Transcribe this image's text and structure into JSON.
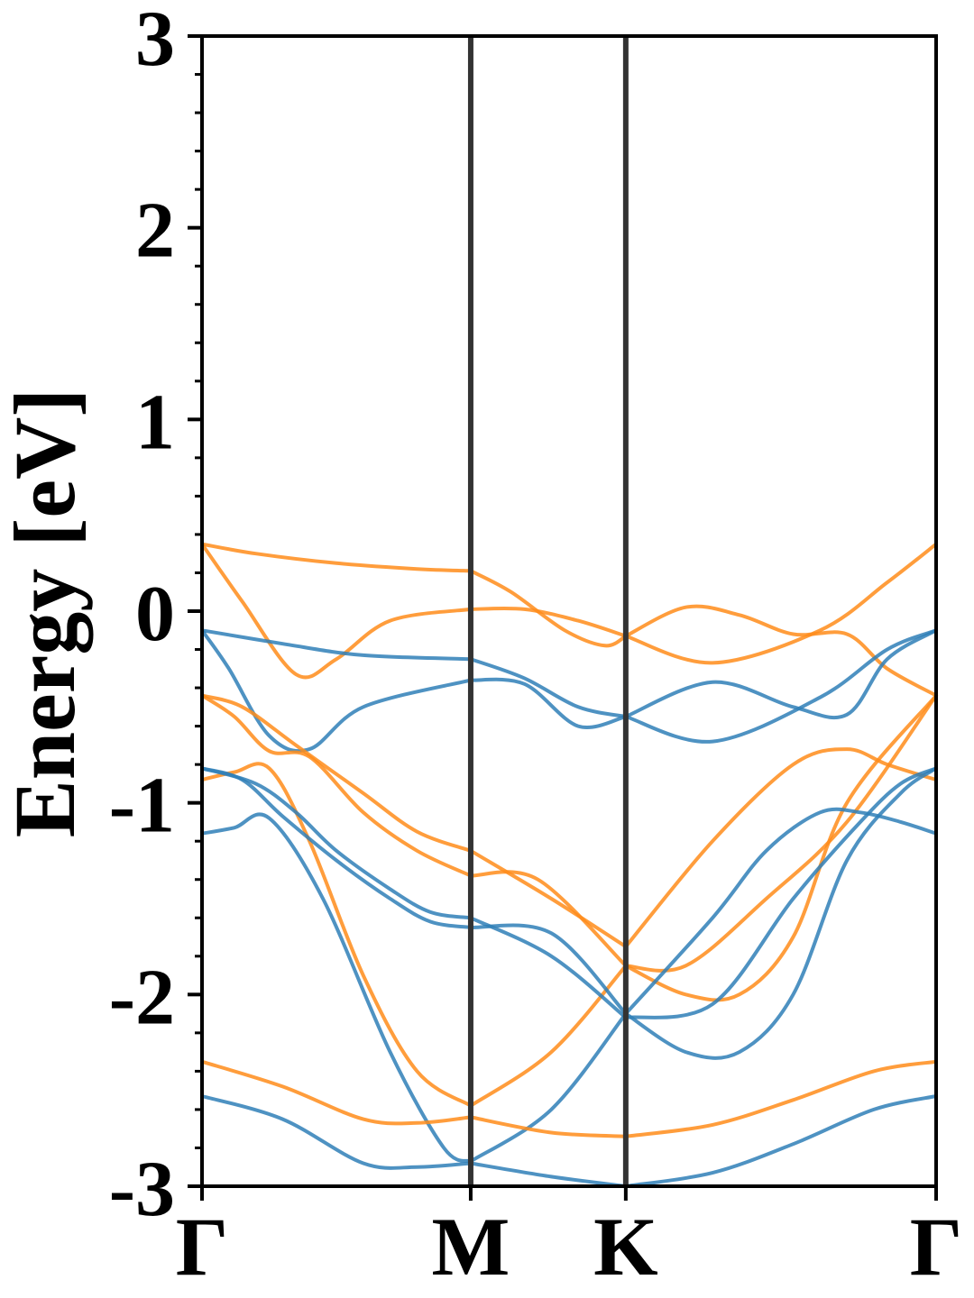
{
  "chart_data": {
    "type": "line",
    "title": "",
    "xlabel": "",
    "ylabel": "Energy [eV]",
    "ylim": [
      -3,
      3
    ],
    "yticks": [
      -3,
      -2,
      -1,
      0,
      1,
      2,
      3
    ],
    "ytick_labels": [
      "-3",
      "-2",
      "-1",
      "0",
      "1",
      "2",
      "3"
    ],
    "kpath": [
      {
        "label": "Γ",
        "x": 0
      },
      {
        "label": "M",
        "x": 1
      },
      {
        "label": "K",
        "x": 1.577
      },
      {
        "label": "Γ",
        "x": 2.732
      }
    ],
    "grid": false,
    "legend": "none",
    "colors": {
      "spin_a": "#ff8c1a",
      "spin_b": "#2f7fb7",
      "kline": "#333333"
    },
    "series": [
      {
        "color": "spin_a",
        "x": [
          0,
          0.2,
          0.5,
          0.8,
          1.0
        ],
        "y": [
          0.35,
          0.3,
          0.25,
          0.22,
          0.21
        ]
      },
      {
        "color": "spin_a",
        "x": [
          1.0,
          1.15,
          1.35,
          1.5,
          1.577
        ],
        "y": [
          0.21,
          0.1,
          -0.1,
          -0.18,
          -0.13
        ]
      },
      {
        "color": "spin_a",
        "x": [
          1.577,
          1.9,
          2.3,
          2.55,
          2.732
        ],
        "y": [
          -0.13,
          -0.27,
          -0.1,
          0.15,
          0.35
        ]
      },
      {
        "color": "spin_a",
        "x": [
          0,
          0.15,
          0.35,
          0.5,
          0.7,
          1.0
        ],
        "y": [
          0.35,
          0.05,
          -0.33,
          -0.25,
          -0.05,
          0.01
        ]
      },
      {
        "color": "spin_a",
        "x": [
          1.0,
          1.2,
          1.4,
          1.577
        ],
        "y": [
          0.01,
          0.01,
          -0.05,
          -0.13
        ]
      },
      {
        "color": "spin_a",
        "x": [
          1.577,
          1.8,
          2.0,
          2.2,
          2.4,
          2.55,
          2.732
        ],
        "y": [
          -0.13,
          0.02,
          -0.02,
          -0.12,
          -0.12,
          -0.3,
          -0.44
        ]
      },
      {
        "color": "spin_b",
        "x": [
          0,
          0.3,
          0.6,
          1.0
        ],
        "y": [
          -0.1,
          -0.17,
          -0.23,
          -0.25
        ]
      },
      {
        "color": "spin_b",
        "x": [
          1.0,
          1.2,
          1.4,
          1.577
        ],
        "y": [
          -0.25,
          -0.35,
          -0.5,
          -0.55
        ]
      },
      {
        "color": "spin_b",
        "x": [
          1.577,
          1.9,
          2.3,
          2.55,
          2.732
        ],
        "y": [
          -0.55,
          -0.68,
          -0.45,
          -0.2,
          -0.1
        ]
      },
      {
        "color": "spin_b",
        "x": [
          0,
          0.1,
          0.25,
          0.4,
          0.6,
          1.0
        ],
        "y": [
          -0.1,
          -0.3,
          -0.65,
          -0.72,
          -0.5,
          -0.36
        ]
      },
      {
        "color": "spin_b",
        "x": [
          1.0,
          1.2,
          1.4,
          1.577
        ],
        "y": [
          -0.36,
          -0.38,
          -0.6,
          -0.55
        ]
      },
      {
        "color": "spin_b",
        "x": [
          1.577,
          1.9,
          2.2,
          2.4,
          2.55,
          2.732
        ],
        "y": [
          -0.55,
          -0.37,
          -0.5,
          -0.54,
          -0.25,
          -0.1
        ]
      },
      {
        "color": "spin_a",
        "x": [
          0,
          0.15,
          0.35,
          0.6,
          0.8,
          1.0
        ],
        "y": [
          -0.44,
          -0.5,
          -0.7,
          -0.95,
          -1.15,
          -1.25
        ]
      },
      {
        "color": "spin_a",
        "x": [
          1.0,
          1.3,
          1.577
        ],
        "y": [
          -1.25,
          -1.5,
          -1.75
        ]
      },
      {
        "color": "spin_a",
        "x": [
          1.577,
          1.9,
          2.2,
          2.4,
          2.55,
          2.732
        ],
        "y": [
          -1.75,
          -1.2,
          -0.8,
          -0.72,
          -0.8,
          -0.88
        ]
      },
      {
        "color": "spin_a",
        "x": [
          0,
          0.12,
          0.25,
          0.4,
          0.6,
          0.8,
          1.0
        ],
        "y": [
          -0.44,
          -0.55,
          -0.73,
          -0.76,
          -1.05,
          -1.25,
          -1.38
        ]
      },
      {
        "color": "spin_a",
        "x": [
          1.0,
          1.25,
          1.577
        ],
        "y": [
          -1.38,
          -1.4,
          -1.85
        ]
      },
      {
        "color": "spin_a",
        "x": [
          1.577,
          1.8,
          2.1,
          2.4,
          2.732
        ],
        "y": [
          -1.85,
          -1.85,
          -1.5,
          -1.1,
          -0.44
        ]
      },
      {
        "color": "spin_a",
        "x": [
          0,
          0.12,
          0.25,
          0.4,
          0.6,
          0.8,
          1.0
        ],
        "y": [
          -0.88,
          -0.84,
          -0.82,
          -1.2,
          -1.9,
          -2.4,
          -2.58
        ]
      },
      {
        "color": "spin_a",
        "x": [
          1.0,
          1.3,
          1.577
        ],
        "y": [
          -2.58,
          -2.3,
          -1.85
        ]
      },
      {
        "color": "spin_a",
        "x": [
          1.577,
          1.8,
          2.0,
          2.2,
          2.4,
          2.732
        ],
        "y": [
          -1.85,
          -2.0,
          -2.0,
          -1.7,
          -1.0,
          -0.44
        ]
      },
      {
        "color": "spin_b",
        "x": [
          0,
          0.2,
          0.35,
          0.5,
          0.7,
          0.85,
          1.0
        ],
        "y": [
          -0.82,
          -0.9,
          -1.05,
          -1.25,
          -1.45,
          -1.57,
          -1.6
        ]
      },
      {
        "color": "spin_b",
        "x": [
          1.0,
          1.3,
          1.577
        ],
        "y": [
          -1.6,
          -1.8,
          -2.12
        ]
      },
      {
        "color": "spin_b",
        "x": [
          1.577,
          1.9,
          2.2,
          2.45,
          2.6,
          2.732
        ],
        "y": [
          -2.12,
          -2.05,
          -1.5,
          -1.1,
          -0.9,
          -0.82
        ]
      },
      {
        "color": "spin_b",
        "x": [
          0,
          0.15,
          0.3,
          0.5,
          0.7,
          0.85,
          1.0
        ],
        "y": [
          -0.82,
          -0.88,
          -1.07,
          -1.3,
          -1.5,
          -1.62,
          -1.65
        ]
      },
      {
        "color": "spin_b",
        "x": [
          1.0,
          1.3,
          1.577
        ],
        "y": [
          -1.65,
          -1.68,
          -2.1
        ]
      },
      {
        "color": "spin_b",
        "x": [
          1.577,
          1.9,
          2.1,
          2.3,
          2.45,
          2.6,
          2.732
        ],
        "y": [
          -2.1,
          -1.6,
          -1.25,
          -1.05,
          -1.05,
          -1.1,
          -1.16
        ]
      },
      {
        "color": "spin_b",
        "x": [
          0,
          0.12,
          0.25,
          0.45,
          0.7,
          0.9,
          1.0
        ],
        "y": [
          -1.16,
          -1.13,
          -1.08,
          -1.5,
          -2.3,
          -2.8,
          -2.87
        ]
      },
      {
        "color": "spin_b",
        "x": [
          1.0,
          1.3,
          1.577
        ],
        "y": [
          -2.87,
          -2.6,
          -2.1
        ]
      },
      {
        "color": "spin_b",
        "x": [
          1.577,
          1.8,
          2.0,
          2.2,
          2.4,
          2.6,
          2.732
        ],
        "y": [
          -2.1,
          -2.3,
          -2.3,
          -2.0,
          -1.3,
          -0.95,
          -0.82
        ]
      },
      {
        "color": "spin_a",
        "x": [
          0,
          0.3,
          0.6,
          0.8,
          1.0
        ],
        "y": [
          -2.35,
          -2.48,
          -2.65,
          -2.67,
          -2.64
        ]
      },
      {
        "color": "spin_a",
        "x": [
          1.0,
          1.3,
          1.577
        ],
        "y": [
          -2.64,
          -2.72,
          -2.74
        ]
      },
      {
        "color": "spin_a",
        "x": [
          1.577,
          1.9,
          2.2,
          2.5,
          2.732
        ],
        "y": [
          -2.74,
          -2.68,
          -2.55,
          -2.4,
          -2.35
        ]
      },
      {
        "color": "spin_b",
        "x": [
          0,
          0.3,
          0.6,
          0.8,
          1.0
        ],
        "y": [
          -2.53,
          -2.65,
          -2.88,
          -2.9,
          -2.88
        ]
      },
      {
        "color": "spin_b",
        "x": [
          1.0,
          1.3,
          1.577
        ],
        "y": [
          -2.88,
          -2.95,
          -3.0
        ]
      },
      {
        "color": "spin_b",
        "x": [
          1.577,
          1.9,
          2.2,
          2.5,
          2.732
        ],
        "y": [
          -3.0,
          -2.93,
          -2.78,
          -2.6,
          -2.53
        ]
      }
    ]
  }
}
